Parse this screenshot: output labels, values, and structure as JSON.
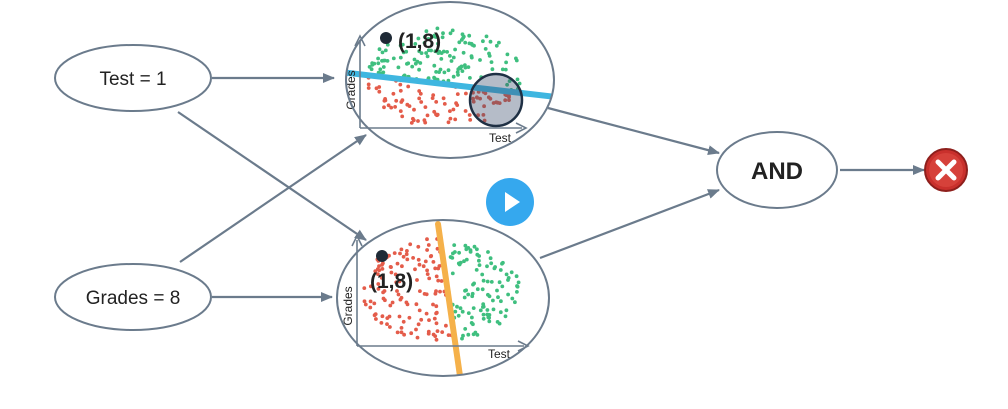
{
  "nodes": {
    "test_input": "Test = 1",
    "grades_input": "Grades = 8",
    "and_gate": "AND"
  },
  "plot_top": {
    "point_label": "(1,8)",
    "x_axis_label": "Test",
    "y_axis_label": "Grades",
    "boundary_color": "#3fb6e0"
  },
  "plot_bottom": {
    "point_label": "(1,8)",
    "x_axis_label": "Test",
    "y_axis_label": "Grades",
    "boundary_color": "#f5b14a"
  },
  "colors": {
    "positive": "#3fbf7f",
    "negative": "#e45c4a",
    "node_stroke": "#6b7b8c",
    "arrow": "#6b7b8c",
    "result_red": "#c9302c",
    "play_blue": "#35a8ee"
  },
  "icons": {
    "result": "cross-icon",
    "play": "play-icon"
  }
}
